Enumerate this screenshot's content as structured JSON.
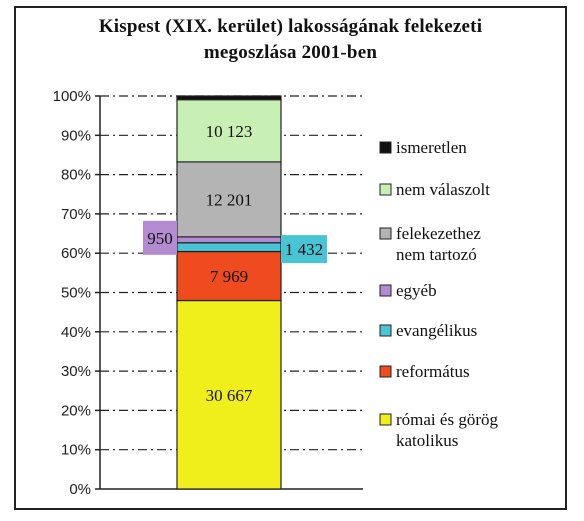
{
  "chart_data": {
    "type": "bar",
    "stacked": true,
    "title_line1": "Kispest (XIX. kerület) lakosságának felekezeti",
    "title_line2": "megoszlása 2001-ben",
    "xlabel": "",
    "ylabel": "",
    "ylim": [
      0,
      100
    ],
    "y_ticks": [
      "0%",
      "10%",
      "20%",
      "30%",
      "40%",
      "50%",
      "60%",
      "70%",
      "80%",
      "90%",
      "100%"
    ],
    "grid": true,
    "legend_position": "right",
    "series": [
      {
        "name": "római és görög katolikus",
        "value": 30667,
        "label": "30 667",
        "color": "#f0ef1c"
      },
      {
        "name": "református",
        "value": 7969,
        "label": "7 969",
        "color": "#ee4c1e"
      },
      {
        "name": "evangélikus",
        "value": 1432,
        "label": "1 432",
        "color": "#48c4d4"
      },
      {
        "name": "egyéb",
        "value": 950,
        "label": "950",
        "color": "#b48bd0"
      },
      {
        "name": "felekezethez nem tartozó",
        "value": 12201,
        "label": "12 201",
        "color": "#b4b4b4"
      },
      {
        "name": "nem válaszolt",
        "value": 10123,
        "label": "10 123",
        "color": "#c8f0b4"
      },
      {
        "name": "ismeretlen",
        "value": 600,
        "label": "",
        "color": "#111111"
      }
    ],
    "legend_order": [
      "ismeretlen",
      "nem válaszolt",
      "felekezethez nem tartozó",
      "egyéb",
      "evangélikus",
      "református",
      "római és görög katolikus"
    ]
  }
}
